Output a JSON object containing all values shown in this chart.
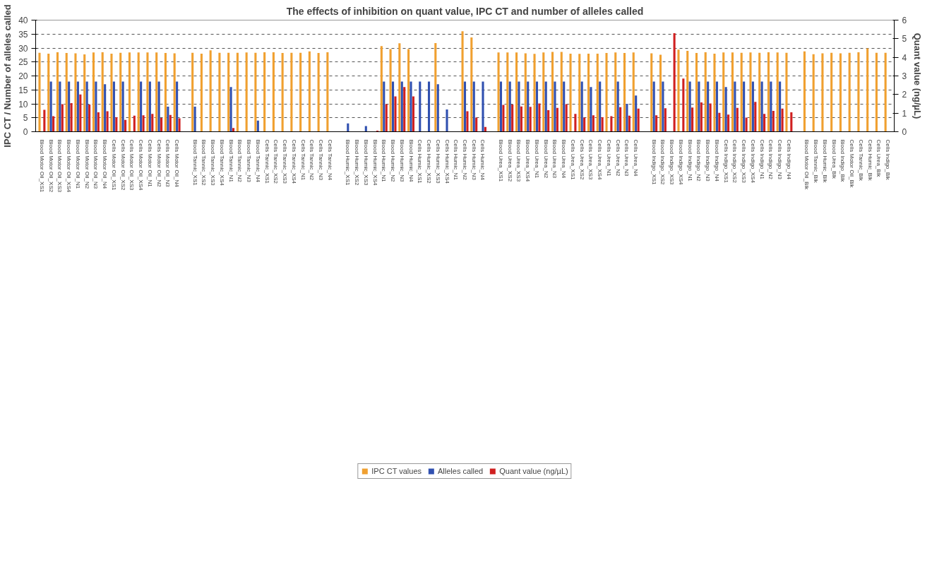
{
  "chart_data": {
    "type": "bar",
    "title": "The effects of inhibition on quant value, IPC CT and number of alleles called",
    "ylabel": "IPC CT / Number of alleles called",
    "y2label": "Quant value (ng/µL)",
    "categories": [
      "Blood Motor Oil_XS1",
      "Blood Motor Oil_XS2",
      "Blood Motor Oil_XS3",
      "Blood Motor Oil_XS4",
      "Blood Motor Oil_N1",
      "Blood Motor Oil_N2",
      "Blood Motor Oil_N3",
      "Blood Motor Oil_N4",
      "Cells Motor Oil_XS1",
      "Cells Motor Oil_XS2",
      "Cells Motor Oil_XS3",
      "Cells Motor Oil_XS4",
      "Cells Motor Oil_N1",
      "Cells Motor Oil_N2",
      "Cells Motor Oil_N3",
      "Cells Motor Oil_N4",
      null,
      "Blood Tannic_XS1",
      "Blood Tannic_XS2",
      "Blood Tannic_XS3",
      "Blood Tannic_XS4",
      "Blood Tannic_N1",
      "Blood Tannic_N2",
      "Blood Tannic_N3",
      "Blood Tannic_N4",
      "Cells Tannic_XS1",
      "Cells Tannic_XS2",
      "Cells Tannic_XS3",
      "Cells Tannic_XS4",
      "Cells Tannic_N1",
      "Cells Tannic_N2",
      "Cells Tannic_N3",
      "Cells Tannic_N4",
      null,
      "Blood Humic_XS1",
      "Blood Humic_XS2",
      "Blood Humic_XS3",
      "Blood Humic_XS4",
      "Blood Humic_N1",
      "Blood Humic_N2",
      "Blood Humic_N3",
      "Blood Humic_N4",
      "Cells Humic_XS1",
      "Cells Humic_XS2",
      "Cells Humic_XS3",
      "Cells Humic_XS4",
      "Cells Humic_N1",
      "Cells Humic_N2",
      "Cells Humic_N3",
      "Cells Humic_N4",
      null,
      "Blood Urea_XS1",
      "Blood Urea_XS2",
      "Blood Urea_XS3",
      "Blood Urea_XS4",
      "Blood Urea_N1",
      "Blood Urea_N2",
      "Blood Urea_N3",
      "Blood Urea_N4",
      "Cells Urea_XS1",
      "Cells Urea_XS2",
      "Cells Urea_XS3",
      "Cells Urea_XS4",
      "Cells Urea_N1",
      "Cells Urea_N2",
      "Cells Urea_N3",
      "Cells Urea_N4",
      null,
      "Blood Indigo_XS1",
      "Blood Indigo_XS2",
      "Blood Indigo_XS3",
      "Blood Indigo_XS4",
      "Blood Indigo_N1",
      "Blood Indigo_N2",
      "Blood Indigo_N3",
      "Blood Indigo_N4",
      "Cells Indigo_XS1",
      "Cells Indigo_XS2",
      "Cells Indigo_XS3",
      "Cells Indigo_XS4",
      "Cells Indigo_N1",
      "Cells Indigo_N2",
      "Cells Indigo_N3",
      "Cells Indigo_N4",
      null,
      "Blood Motor Oil_Blk",
      "Blood Tannic_Blk",
      "Blood Humic_Blk",
      "Blood Urea_Blk",
      "Blood Indigo_Blk",
      "Cells Motor Oil_Blk",
      "Cells Tannic_Blk",
      "Cells Humic_Blk",
      "Cells Urea_Blk",
      "Cells Indigo_Blk"
    ],
    "series": [
      {
        "name": "IPC CT values",
        "color": "#f0a030",
        "values": [
          28.3,
          28.0,
          28.5,
          28.2,
          28.1,
          27.7,
          28.4,
          28.5,
          28.0,
          28.3,
          28.4,
          28.4,
          28.4,
          28.4,
          28.2,
          28.1,
          null,
          28.3,
          28.0,
          29.2,
          28.3,
          28.3,
          28.3,
          28.4,
          28.3,
          28.5,
          28.5,
          28.2,
          28.3,
          28.3,
          28.8,
          28.2,
          28.5,
          null,
          0,
          0,
          0,
          0,
          30.7,
          29.6,
          31.7,
          29.6,
          0,
          0,
          31.8,
          0,
          0,
          36.0,
          33.8,
          0,
          null,
          28.4,
          28.4,
          28.4,
          28.1,
          27.9,
          28.4,
          28.6,
          28.6,
          28.0,
          27.9,
          28.0,
          28.0,
          28.2,
          28.4,
          28.2,
          28.4,
          null,
          28.1,
          27.6,
          null,
          29.4,
          29.0,
          28.2,
          28.5,
          28.0,
          28.4,
          28.4,
          28.3,
          28.4,
          28.3,
          28.5,
          28.4,
          28.3,
          null,
          28.8,
          27.8,
          28.1,
          28.3,
          28.1,
          28.3,
          28.5,
          29.9,
          28.3,
          28.3
        ]
      },
      {
        "name": "Alleles called",
        "color": "#3050b0",
        "values": [
          0,
          18,
          18,
          18,
          18,
          18,
          18,
          17,
          18,
          18,
          0,
          18,
          18,
          18,
          9,
          18,
          null,
          9,
          0,
          0,
          0,
          16,
          0,
          0,
          4,
          0,
          0,
          0,
          0,
          0,
          0,
          0,
          0,
          null,
          3,
          0,
          2,
          0,
          18,
          18,
          18,
          18,
          18,
          18,
          17,
          8,
          0,
          18,
          18,
          18,
          null,
          18,
          18,
          18,
          18,
          18,
          18,
          18,
          18,
          0,
          18,
          16,
          18,
          0,
          18,
          10,
          13,
          null,
          18,
          18,
          null,
          null,
          18,
          18,
          18,
          18,
          16,
          18,
          18,
          18,
          18,
          18,
          18,
          0,
          null,
          0,
          0,
          0,
          0,
          0,
          0,
          0,
          0,
          0,
          0
        ]
      },
      {
        "name": "Quant value (ng/µL)",
        "color": "#d02020",
        "axis": "y2",
        "values": [
          1.18,
          0.84,
          1.48,
          1.54,
          2.0,
          1.46,
          1.04,
          1.1,
          0.78,
          0.64,
          0.86,
          0.88,
          0.96,
          0.74,
          0.9,
          0.72,
          null,
          0,
          0,
          0,
          0,
          0.2,
          0,
          0,
          0,
          0,
          0,
          0,
          0,
          0,
          0,
          0,
          0,
          null,
          0,
          0,
          0,
          0.06,
          1.48,
          1.9,
          2.4,
          1.9,
          0,
          0,
          0,
          0,
          0,
          1.1,
          0.76,
          0.26,
          null,
          1.44,
          1.46,
          1.36,
          1.34,
          1.52,
          1.16,
          1.28,
          1.48,
          0.96,
          0.76,
          0.88,
          0.78,
          0.84,
          1.32,
          0.86,
          1.24,
          null,
          0.88,
          1.26,
          5.3,
          2.86,
          1.3,
          1.58,
          1.52,
          1.02,
          0.92,
          1.28,
          0.76,
          1.6,
          0.96,
          1.12,
          1.24,
          1.04,
          null,
          0,
          0,
          0,
          0,
          0,
          0,
          0,
          0,
          0,
          0
        ]
      }
    ],
    "ylim": [
      0,
      40
    ],
    "yticks": [
      0,
      5,
      10,
      15,
      20,
      25,
      30,
      35,
      40
    ],
    "y2lim": [
      0,
      6
    ],
    "y2ticks": [
      0,
      1,
      2,
      3,
      4,
      5,
      6
    ],
    "grid": "y",
    "legend": "bottom"
  }
}
